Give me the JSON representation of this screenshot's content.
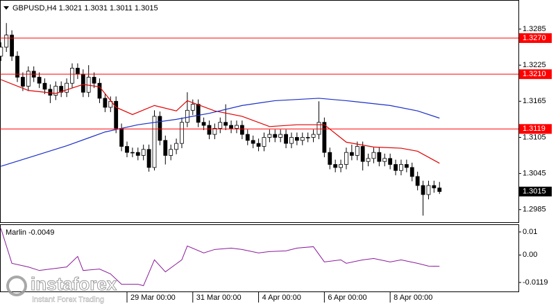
{
  "chart_data": [
    {
      "type": "candlestick",
      "title": "GBPUSD,H4 1.3021 1.3031 1.3011 1.3015",
      "x": [
        0,
        1,
        2,
        3,
        4,
        5,
        6,
        7,
        8,
        9,
        10,
        11,
        12,
        13,
        14,
        15,
        16,
        17,
        18,
        19,
        20,
        21,
        22,
        23,
        24,
        25,
        26,
        27,
        28,
        29,
        30,
        31,
        32,
        33,
        34,
        35,
        36,
        37,
        38,
        39,
        40,
        41,
        42,
        43,
        44,
        45,
        46,
        47,
        48,
        49,
        50,
        51,
        52,
        53,
        54,
        55,
        56,
        57,
        58,
        59,
        60,
        61,
        62,
        63,
        64,
        65,
        66,
        67,
        68,
        69,
        70,
        71,
        72,
        73,
        74,
        75,
        76,
        77,
        78,
        79,
        80
      ],
      "open": [
        1.324,
        1.3255,
        1.3275,
        1.324,
        1.3205,
        1.319,
        1.3215,
        1.3205,
        1.3195,
        1.3185,
        1.3175,
        1.319,
        1.318,
        1.3195,
        1.322,
        1.321,
        1.318,
        1.3205,
        1.3195,
        1.317,
        1.3155,
        1.3165,
        1.312,
        1.309,
        1.308,
        1.308,
        1.3075,
        1.3085,
        1.3055,
        1.314,
        1.31,
        1.3075,
        1.3085,
        1.3095,
        1.313,
        1.315,
        1.316,
        1.313,
        1.3125,
        1.311,
        1.312,
        1.313,
        1.3125,
        1.312,
        1.3125,
        1.311,
        1.31,
        1.3095,
        1.309,
        1.3105,
        1.311,
        1.3105,
        1.311,
        1.3095,
        1.3105,
        1.31,
        1.3105,
        1.3105,
        1.311,
        1.313,
        1.308,
        1.306,
        1.3055,
        1.306,
        1.308,
        1.3075,
        1.309,
        1.3065,
        1.307,
        1.308,
        1.3065,
        1.307,
        1.306,
        1.305,
        1.306,
        1.3055,
        1.304,
        1.3025,
        1.301,
        1.3025,
        1.3021
      ],
      "high": [
        1.3263,
        1.3295,
        1.3283,
        1.3248,
        1.3213,
        1.3223,
        1.3223,
        1.3213,
        1.3203,
        1.3193,
        1.3198,
        1.3198,
        1.3203,
        1.3228,
        1.3228,
        1.3218,
        1.3225,
        1.3213,
        1.3203,
        1.3178,
        1.3173,
        1.3173,
        1.3128,
        1.3098,
        1.3088,
        1.3088,
        1.3093,
        1.3093,
        1.315,
        1.3148,
        1.3108,
        1.3093,
        1.3103,
        1.3138,
        1.318,
        1.3168,
        1.3168,
        1.3138,
        1.3133,
        1.3128,
        1.3138,
        1.316,
        1.3133,
        1.3133,
        1.3133,
        1.3118,
        1.3108,
        1.3103,
        1.3113,
        1.3118,
        1.3118,
        1.3118,
        1.3118,
        1.3113,
        1.3113,
        1.3113,
        1.3113,
        1.3118,
        1.3165,
        1.3138,
        1.3088,
        1.3068,
        1.3068,
        1.3088,
        1.3093,
        1.3098,
        1.3098,
        1.3078,
        1.3088,
        1.3088,
        1.3078,
        1.3078,
        1.3068,
        1.3068,
        1.3068,
        1.3063,
        1.3048,
        1.3033,
        1.3033,
        1.3033,
        1.3031
      ],
      "low": [
        1.3232,
        1.3247,
        1.3232,
        1.3197,
        1.3182,
        1.3182,
        1.3197,
        1.3187,
        1.3177,
        1.3162,
        1.3167,
        1.3172,
        1.3172,
        1.3187,
        1.3202,
        1.3172,
        1.3172,
        1.3187,
        1.3162,
        1.3147,
        1.3147,
        1.3112,
        1.3082,
        1.3072,
        1.3072,
        1.3067,
        1.3067,
        1.3048,
        1.305,
        1.3092,
        1.306,
        1.3067,
        1.3077,
        1.3087,
        1.3122,
        1.3142,
        1.3122,
        1.3117,
        1.3102,
        1.3102,
        1.3112,
        1.3117,
        1.3112,
        1.3112,
        1.3102,
        1.3092,
        1.3087,
        1.3082,
        1.3082,
        1.3097,
        1.3097,
        1.3097,
        1.3087,
        1.3087,
        1.3092,
        1.3092,
        1.3097,
        1.3097,
        1.3102,
        1.3072,
        1.3052,
        1.3047,
        1.3047,
        1.3052,
        1.3067,
        1.3067,
        1.305,
        1.3057,
        1.3062,
        1.3057,
        1.3057,
        1.3052,
        1.3042,
        1.3042,
        1.3047,
        1.3032,
        1.3017,
        1.2975,
        1.3002,
        1.3013,
        1.3011
      ],
      "close": [
        1.3255,
        1.3275,
        1.324,
        1.3205,
        1.319,
        1.3215,
        1.3205,
        1.3195,
        1.3185,
        1.3175,
        1.319,
        1.318,
        1.3195,
        1.322,
        1.321,
        1.318,
        1.3205,
        1.3195,
        1.317,
        1.3155,
        1.3165,
        1.312,
        1.309,
        1.308,
        1.308,
        1.3075,
        1.3085,
        1.3055,
        1.314,
        1.31,
        1.3075,
        1.3085,
        1.3095,
        1.313,
        1.315,
        1.316,
        1.313,
        1.3125,
        1.311,
        1.312,
        1.313,
        1.3125,
        1.312,
        1.3125,
        1.311,
        1.31,
        1.3095,
        1.309,
        1.3105,
        1.311,
        1.3105,
        1.311,
        1.3095,
        1.3105,
        1.31,
        1.3105,
        1.3105,
        1.311,
        1.313,
        1.308,
        1.306,
        1.3055,
        1.306,
        1.308,
        1.3075,
        1.309,
        1.3065,
        1.307,
        1.308,
        1.3065,
        1.307,
        1.306,
        1.305,
        1.306,
        1.3055,
        1.304,
        1.3025,
        1.301,
        1.3025,
        1.3021,
        1.3015
      ],
      "up_color": "#ffffff",
      "down_color": "#000000",
      "series": [
        {
          "color": "#e00000",
          "x": [
            0,
            5,
            10,
            15,
            18,
            21,
            24,
            28,
            32,
            34,
            39,
            44,
            49,
            54,
            59,
            63,
            68,
            73,
            76,
            80
          ],
          "values": [
            1.3201,
            1.3183,
            1.3178,
            1.3193,
            1.3189,
            1.3155,
            1.3143,
            1.3158,
            1.3149,
            1.3166,
            1.3149,
            1.314,
            1.3123,
            1.3126,
            1.3126,
            1.3097,
            1.3089,
            1.3087,
            1.3082,
            1.3062
          ]
        },
        {
          "color": "#1a2fc8",
          "x": [
            0,
            6,
            12,
            19,
            25,
            32,
            38,
            44,
            50,
            58,
            63,
            71,
            76,
            80
          ],
          "values": [
            1.3057,
            1.3074,
            1.3091,
            1.3114,
            1.3126,
            1.3135,
            1.3145,
            1.3158,
            1.3166,
            1.317,
            1.3166,
            1.3158,
            1.3149,
            1.3137
          ]
        }
      ],
      "levels": [
        {
          "value": 1.327,
          "label": "1.3270"
        },
        {
          "value": 1.321,
          "label": "1.3210"
        },
        1.3119
      ],
      "level_color": "#ff0000",
      "current_price": 1.3015,
      "xlim": [
        -0.165,
        94.4
      ],
      "ylim": [
        1.2964,
        1.3331
      ],
      "xticks": [
        {
          "value": 23,
          "label": "29 Mar 00:00"
        },
        {
          "value": 35,
          "label": "31 Mar 00:00"
        },
        {
          "value": 47,
          "label": "4 Apr 00:00"
        },
        {
          "value": 59,
          "label": "6 Apr 00:00"
        },
        {
          "value": 71,
          "label": "8 Apr 00:00"
        }
      ],
      "yticks": [
        1.3285,
        1.3225,
        1.3165,
        1.3105,
        1.3045,
        1.2985
      ]
    },
    {
      "type": "line",
      "title": "Marlin -0.0049",
      "color": "#8b1a9b",
      "x": [
        0,
        2,
        5,
        7,
        10,
        12,
        14,
        15,
        18,
        20,
        22,
        25,
        26,
        28,
        30,
        33,
        34,
        37,
        39,
        42,
        44,
        47,
        49,
        52,
        54,
        57,
        59,
        62,
        63,
        66,
        68,
        71,
        73,
        76,
        78,
        80
      ],
      "values": [
        0.0115,
        -0.0036,
        -0.0052,
        -0.0067,
        -0.0058,
        -0.0052,
        -0.0006,
        -0.0067,
        -0.0061,
        -0.0082,
        -0.0127,
        -0.0127,
        -0.0133,
        -0.0021,
        -0.0073,
        -0.0021,
        0.0039,
        0.0009,
        0.0024,
        0.003,
        0.0024,
        0.0009,
        0.0015,
        0.0018,
        0.003,
        0.0036,
        -0.003,
        -0.0021,
        -0.0036,
        -0.0021,
        -0.0015,
        -0.003,
        -0.0021,
        -0.0036,
        -0.0048,
        -0.0049
      ],
      "ylim": [
        -0.0158,
        0.013
      ],
      "yticks": [
        0.01,
        {
          "value": 0,
          "label": "0.00"
        },
        -0.0119
      ]
    }
  ],
  "watermark": {
    "brand": "instaforex",
    "tagline": "Instant Forex Trading"
  }
}
